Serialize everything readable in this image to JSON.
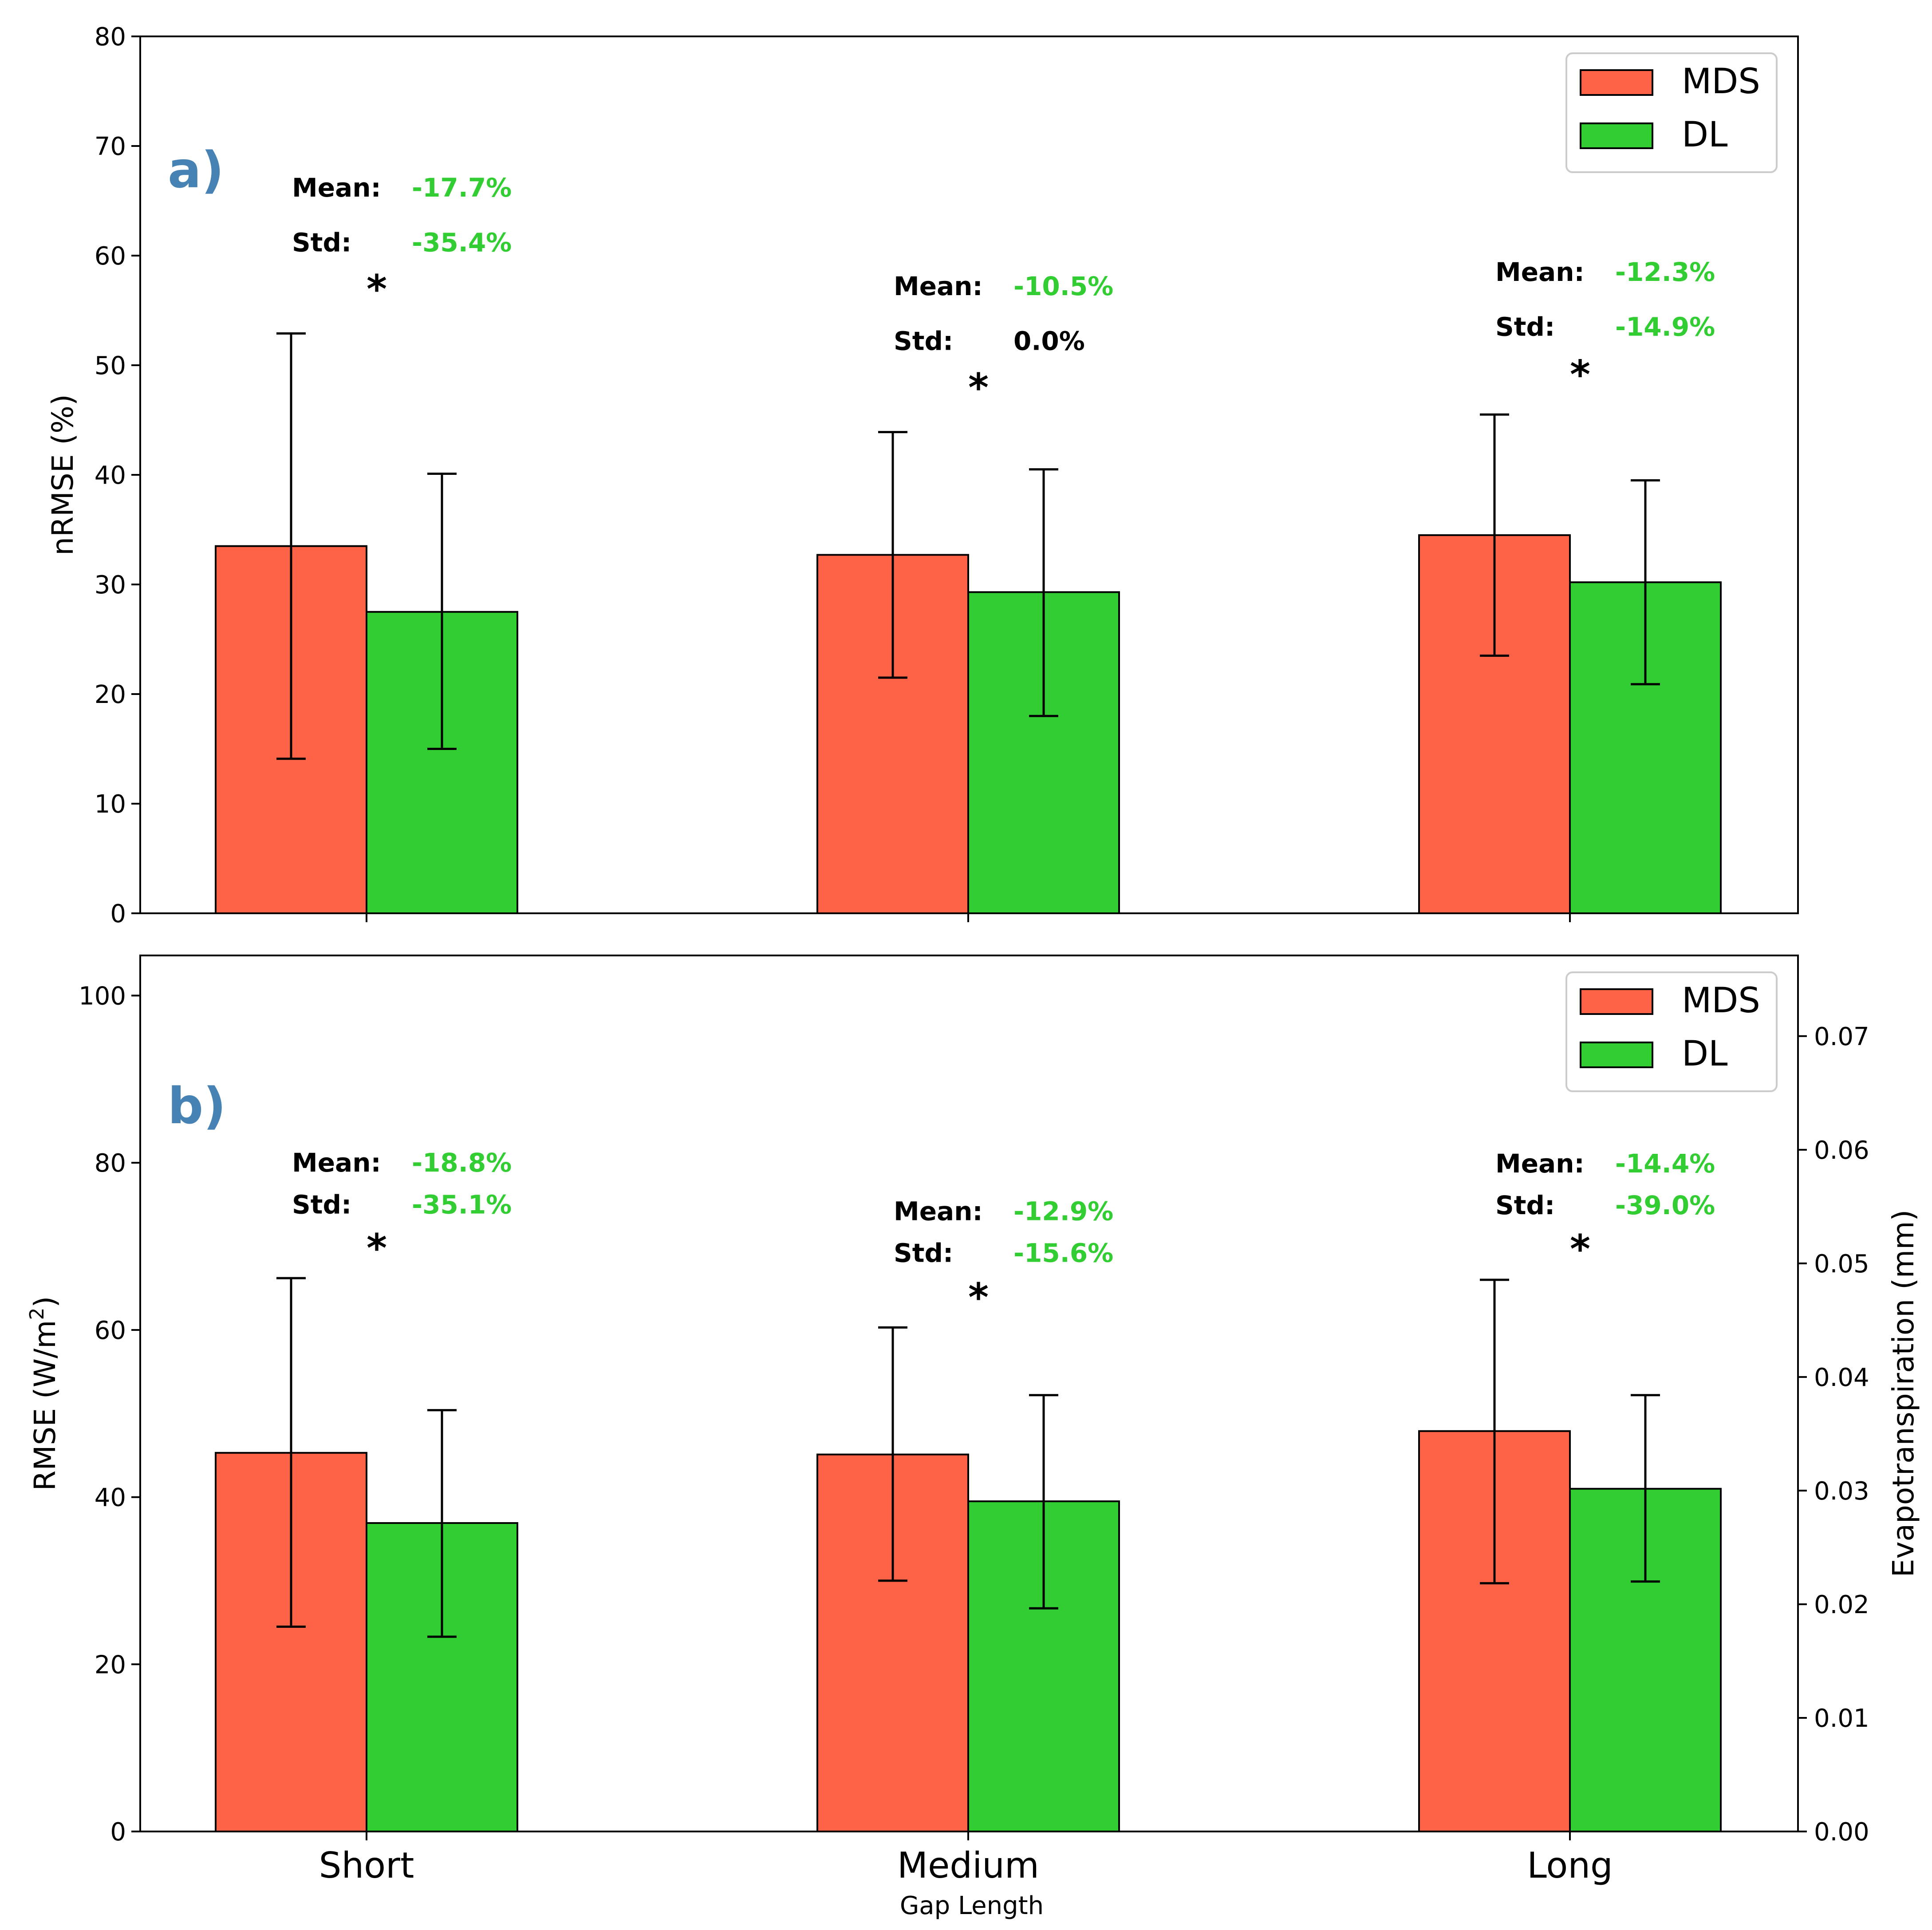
{
  "chart_data": [
    {
      "type": "bar",
      "panel_label": "a)",
      "categories": [
        "Short",
        "Medium",
        "Long"
      ],
      "series": [
        {
          "name": "MDS",
          "color": "#ff6347",
          "values": [
            33.5,
            32.7,
            34.5
          ],
          "err_low": [
            14.1,
            21.5,
            23.5
          ],
          "err_high": [
            52.9,
            43.9,
            45.5
          ]
        },
        {
          "name": "DL",
          "color": "#32cd32",
          "values": [
            27.5,
            29.3,
            30.2
          ],
          "err_low": [
            15.0,
            18.0,
            20.9
          ],
          "err_high": [
            40.1,
            40.5,
            39.5
          ]
        }
      ],
      "ylabel": "nRMSE (%)",
      "ylim": [
        0,
        80
      ],
      "yticks": [
        0,
        10,
        20,
        30,
        40,
        50,
        60,
        70,
        80
      ],
      "legend": "top-right",
      "annotations": [
        {
          "mean_key": "Mean:",
          "mean_value": "-17.7%",
          "mean_color": "#32cd32",
          "std_key": "Std:",
          "std_value": "-35.4%",
          "std_color": "#32cd32",
          "sig": "*",
          "mean_y": 66.2,
          "std_y": 61.2,
          "sig_y": 57.5
        },
        {
          "mean_key": "Mean:",
          "mean_value": "-10.5%",
          "mean_color": "#32cd32",
          "std_key": "Std:",
          "std_value": "0.0%",
          "std_color": "#000000",
          "sig": "*",
          "mean_y": 57.2,
          "std_y": 52.2,
          "sig_y": 48.5
        },
        {
          "mean_key": "Mean:",
          "mean_value": "-12.3%",
          "mean_color": "#32cd32",
          "std_key": "Std:",
          "std_value": "-14.9%",
          "std_color": "#32cd32",
          "sig": "*",
          "mean_y": 58.5,
          "std_y": 53.5,
          "sig_y": 49.7
        }
      ]
    },
    {
      "type": "bar",
      "panel_label": "b)",
      "categories": [
        "Short",
        "Medium",
        "Long"
      ],
      "series": [
        {
          "name": "MDS",
          "color": "#ff6347",
          "values": [
            45.3,
            45.1,
            47.9
          ],
          "err_low": [
            24.5,
            30.0,
            29.7
          ],
          "err_high": [
            66.2,
            60.3,
            66.0
          ]
        },
        {
          "name": "DL",
          "color": "#32cd32",
          "values": [
            36.9,
            39.5,
            41.0
          ],
          "err_low": [
            23.3,
            26.7,
            29.9
          ],
          "err_high": [
            50.4,
            52.2,
            52.2
          ]
        }
      ],
      "xlabel": "Gap Length",
      "ylabel": "RMSE (W/m²)",
      "ylabel_main": "RMSE (W/m",
      "ylabel_sup": "2",
      "ylabel_end": ")",
      "ylim": [
        0,
        104.8
      ],
      "yticks": [
        0,
        20,
        40,
        60,
        80,
        100
      ],
      "y2label": "Evapotranspiration (mm)",
      "y2lim": [
        0,
        0.0771
      ],
      "y2ticks": [
        "0.00",
        "0.01",
        "0.02",
        "0.03",
        "0.04",
        "0.05",
        "0.06",
        "0.07"
      ],
      "legend": "top-right",
      "annotations": [
        {
          "mean_key": "Mean:",
          "mean_value": "-18.8%",
          "mean_color": "#32cd32",
          "std_key": "Std:",
          "std_value": "-35.1%",
          "std_color": "#32cd32",
          "sig": "*",
          "mean_y": 80.0,
          "std_y": 75.0,
          "sig_y": 70.5
        },
        {
          "mean_key": "Mean:",
          "mean_value": "-12.9%",
          "mean_color": "#32cd32",
          "std_key": "Std:",
          "std_value": "-15.6%",
          "std_color": "#32cd32",
          "sig": "*",
          "mean_y": 74.2,
          "std_y": 69.2,
          "sig_y": 64.6
        },
        {
          "mean_key": "Mean:",
          "mean_value": "-14.4%",
          "mean_color": "#32cd32",
          "std_key": "Std:",
          "std_value": "-39.0%",
          "std_color": "#32cd32",
          "sig": "*",
          "mean_y": 79.9,
          "std_y": 74.9,
          "sig_y": 70.4
        }
      ]
    }
  ]
}
